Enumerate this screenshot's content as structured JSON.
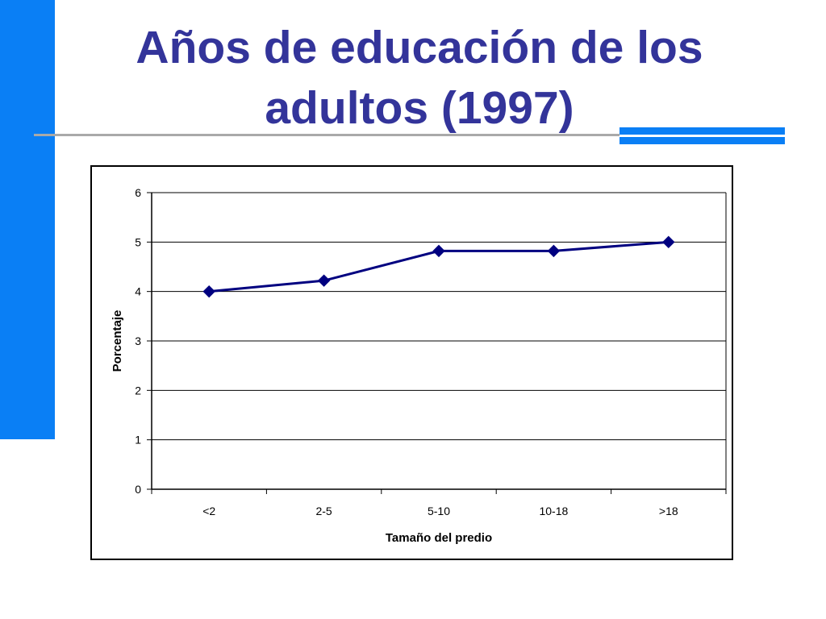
{
  "slide": {
    "title_line1": "Años de educación de los",
    "title_line2": "adultos (1997)"
  },
  "colors": {
    "title": "#33349a",
    "accent": "#0a7ff5",
    "series": "#000080",
    "rule": "#a9a9a9"
  },
  "chart_data": {
    "type": "line",
    "categories": [
      "<2",
      "2-5",
      "5-10",
      "10-18",
      ">18"
    ],
    "series": [
      {
        "values": [
          4.0,
          4.22,
          4.82,
          4.82,
          5.0
        ]
      }
    ],
    "xlabel": "Tamaño del predio",
    "ylabel": "Porcentaje",
    "ylim": [
      0,
      6
    ],
    "yticks": [
      0,
      1,
      2,
      3,
      4,
      5,
      6
    ],
    "grid": true,
    "legend": "none",
    "marker": "diamond"
  }
}
